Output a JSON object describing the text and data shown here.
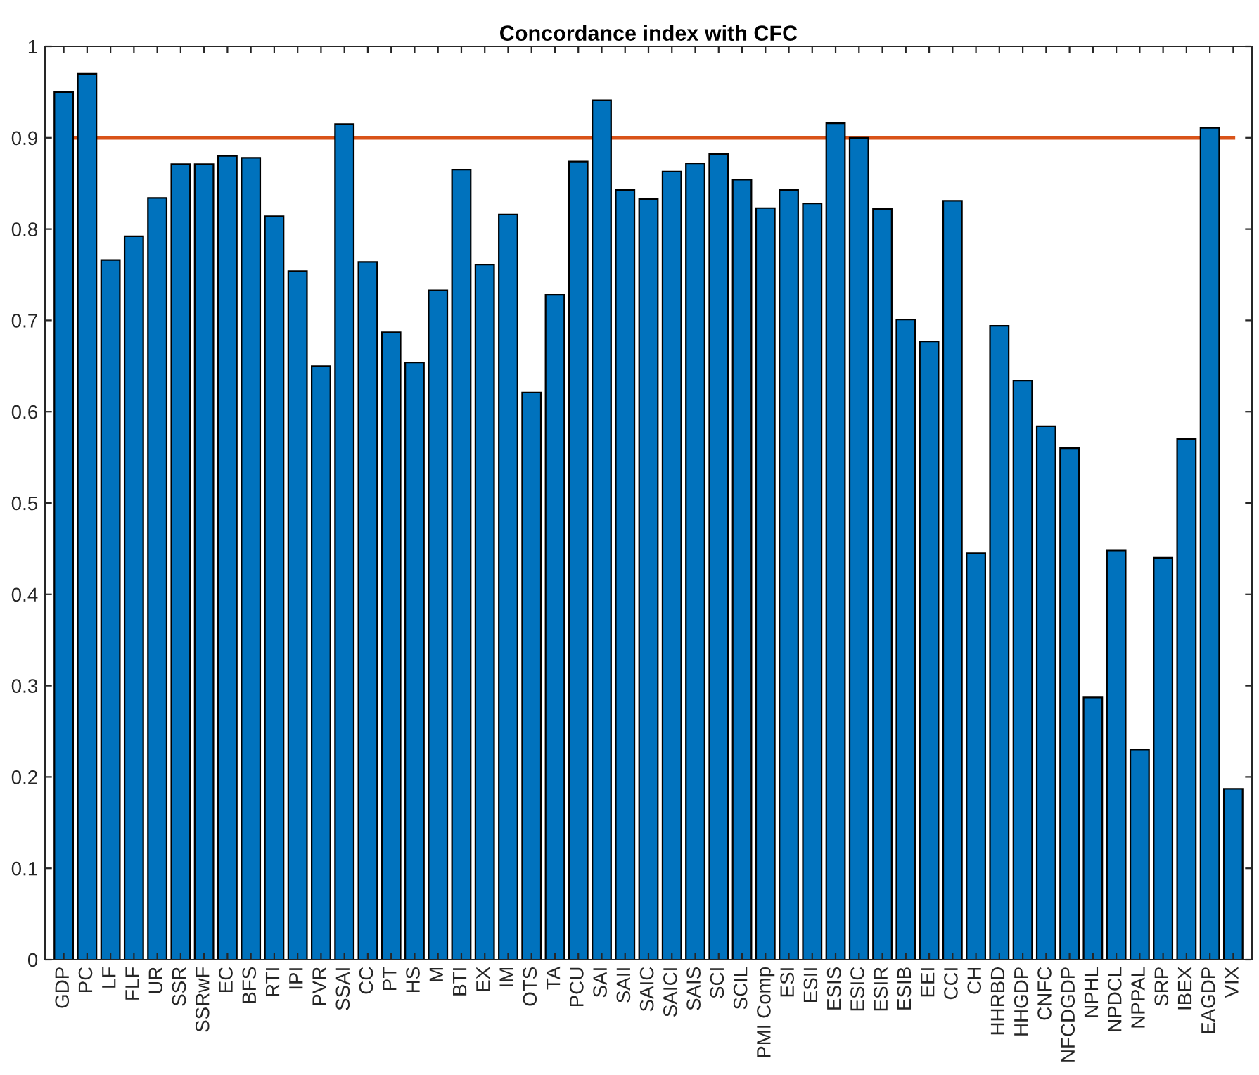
{
  "chart_data": {
    "type": "bar",
    "title": "Concordance index with CFC",
    "categories": [
      "GDP",
      "PC",
      "LF",
      "FLF",
      "UR",
      "SSR",
      "SSRwF",
      "EC",
      "BFS",
      "RTI",
      "IPI",
      "PVR",
      "SSAI",
      "CC",
      "PT",
      "HS",
      "M",
      "BTI",
      "EX",
      "IM",
      "OTS",
      "TA",
      "PCU",
      "SAI",
      "SAII",
      "SAIC",
      "SAICI",
      "SAIS",
      "SCI",
      "SCIL",
      "PMI Comp",
      "ESI",
      "ESII",
      "ESIS",
      "ESIC",
      "ESIR",
      "ESIB",
      "EEI",
      "CCI",
      "CH",
      "HHRBD",
      "HHGDP",
      "CNFC",
      "NFCDGDP",
      "NPHL",
      "NPDCL",
      "NPPAL",
      "SRP",
      "IBEX",
      "EAGDP",
      "VIX"
    ],
    "values": [
      0.95,
      0.97,
      0.766,
      0.792,
      0.834,
      0.871,
      0.871,
      0.88,
      0.878,
      0.814,
      0.754,
      0.65,
      0.915,
      0.764,
      0.687,
      0.654,
      0.733,
      0.865,
      0.761,
      0.816,
      0.621,
      0.728,
      0.874,
      0.941,
      0.843,
      0.833,
      0.863,
      0.872,
      0.882,
      0.854,
      0.823,
      0.843,
      0.828,
      0.916,
      0.9,
      0.822,
      0.701,
      0.677,
      0.831,
      0.445,
      0.694,
      0.634,
      0.584,
      0.56,
      0.287,
      0.448,
      0.23,
      0.44,
      0.57,
      0.911,
      0.187
    ],
    "color": "#0072bd",
    "ylim": [
      0,
      1
    ],
    "yticks": [
      0,
      0.1,
      0.2,
      0.3,
      0.4,
      0.5,
      0.6,
      0.7,
      0.8,
      0.9,
      1
    ],
    "ref_lines": [
      {
        "axis": "y",
        "value": 0.9,
        "color": "#d95319",
        "line_style": "solid"
      }
    ],
    "grid": false,
    "legend": false
  }
}
